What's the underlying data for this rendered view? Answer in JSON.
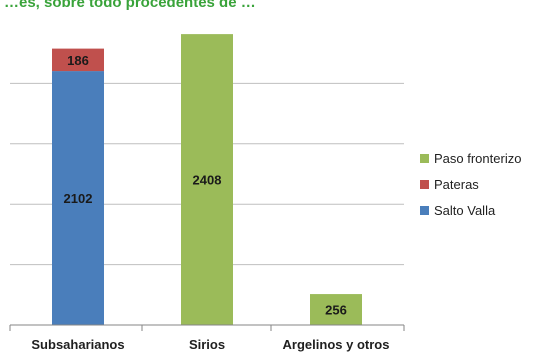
{
  "title_fragment": "…es, sobre todo procedentes de …",
  "colors": {
    "salto_valla": "#4a7ebb",
    "pateras": "#c0504d",
    "paso_fronterizo": "#9bbb59",
    "gridline": "#bfbfbf",
    "axis": "#868686",
    "title_left": "#39a33a",
    "title_right": "#7030a0"
  },
  "chart_data": {
    "type": "bar",
    "stacked": true,
    "categories": [
      "Subsaharianos",
      "Sirios",
      "Argelinos y otros"
    ],
    "series": [
      {
        "name": "Salto Valla",
        "values": [
          2102,
          0,
          0
        ],
        "color": "#4a7ebb"
      },
      {
        "name": "Pateras",
        "values": [
          186,
          0,
          0
        ],
        "color": "#c0504d"
      },
      {
        "name": "Paso fronterizo",
        "values": [
          0,
          2408,
          256
        ],
        "color": "#9bbb59"
      }
    ],
    "data_labels": [
      {
        "category": "Subsaharianos",
        "series": "Salto Valla",
        "text": "2102"
      },
      {
        "category": "Subsaharianos",
        "series": "Pateras",
        "text": "186"
      },
      {
        "category": "Sirios",
        "series": "Paso fronterizo",
        "text": "2408"
      },
      {
        "category": "Argelinos y otros",
        "series": "Paso fronterizo",
        "text": "256"
      }
    ],
    "legend": {
      "placement": "right",
      "entries": [
        "Paso fronterizo",
        "Pateras",
        "Salto Valla"
      ]
    },
    "ylim": [
      0,
      2500
    ],
    "gridlines": [
      500,
      1000,
      1500,
      2000
    ],
    "grid": true,
    "y_tick_labels_visible": false
  }
}
